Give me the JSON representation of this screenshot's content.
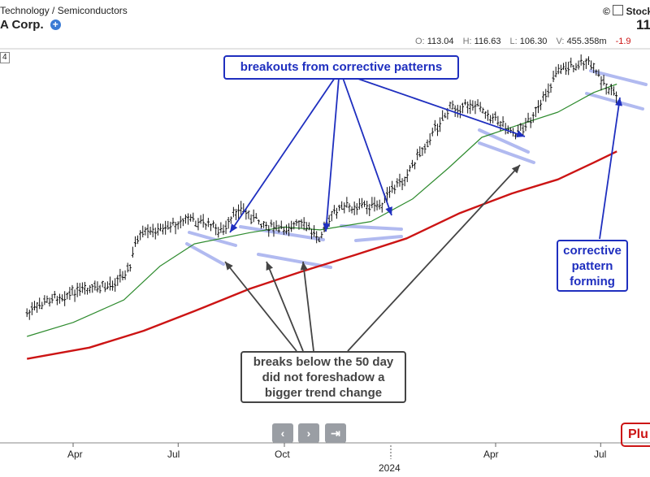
{
  "header": {
    "sector": "Technology / Semiconductors",
    "company": "A Corp.",
    "brand": "StockC",
    "price_partial": "11",
    "ohlc": {
      "open_label": "O:",
      "open": "113.04",
      "high_label": "H:",
      "high": "116.63",
      "low_label": "L:",
      "low": "106.30",
      "volume_label": "V:",
      "volume": "455.358m",
      "change_partial": "-1.9"
    },
    "corner_label": "4",
    "plus_badge": "Plu"
  },
  "annotations": {
    "breakouts": "breakouts from corrective patterns",
    "breaks": [
      "breaks below the 50 day",
      "did not foreshadow a",
      "bigger trend change"
    ],
    "corrective": [
      "corrective",
      "pattern",
      "forming"
    ]
  },
  "colors": {
    "price_bars": "#111111",
    "ma_50": "#2e8b2e",
    "ma_200": "#cc1414",
    "pattern_lines": "#a9b3ee",
    "breakout_arrows": "#1f2fbf",
    "break_arrows": "#444444",
    "callout_blue": "#1f2fbf",
    "callout_gray": "#444444",
    "badge_red": "#cc1414"
  },
  "nav": {
    "prev": "‹",
    "next": "›",
    "end": "⇥"
  },
  "chart_data": {
    "type": "line",
    "x_axis": {
      "tick_labels": [
        "Apr",
        "Jul",
        "Oct",
        "Apr",
        "Jul"
      ],
      "year_label": "2024"
    },
    "series": [
      {
        "style": "ohlc",
        "color": "#111111",
        "points": [
          [
            "2023-02-20",
            48
          ],
          [
            "2023-03-15",
            54
          ],
          [
            "2023-04-10",
            56
          ],
          [
            "2023-05-01",
            58
          ],
          [
            "2023-05-20",
            64
          ],
          [
            "2023-05-26",
            75
          ],
          [
            "2023-06-20",
            79
          ],
          [
            "2023-07-10",
            82
          ],
          [
            "2023-07-25",
            80
          ],
          [
            "2023-08-10",
            77
          ],
          [
            "2023-08-22",
            86
          ],
          [
            "2023-09-05",
            82
          ],
          [
            "2023-09-25",
            78
          ],
          [
            "2023-10-15",
            80
          ],
          [
            "2023-10-31",
            76
          ],
          [
            "2023-11-15",
            85
          ],
          [
            "2023-12-05",
            87
          ],
          [
            "2023-12-20",
            86
          ],
          [
            "2024-01-10",
            95
          ],
          [
            "2024-02-01",
            109
          ],
          [
            "2024-02-20",
            121
          ],
          [
            "2024-03-10",
            123
          ],
          [
            "2024-03-25",
            120
          ],
          [
            "2024-04-19",
            112
          ],
          [
            "2024-05-10",
            122
          ],
          [
            "2024-05-24",
            135
          ],
          [
            "2024-06-20",
            138
          ],
          [
            "2024-07-05",
            130
          ],
          [
            "2024-07-15",
            125
          ]
        ]
      },
      {
        "style": "line",
        "color": "#2e8b2e",
        "points": [
          [
            "2023-02-20",
            40
          ],
          [
            "2023-04-01",
            45
          ],
          [
            "2023-05-15",
            53
          ],
          [
            "2023-06-15",
            65
          ],
          [
            "2023-07-15",
            73
          ],
          [
            "2023-09-01",
            77
          ],
          [
            "2023-10-01",
            79
          ],
          [
            "2023-11-01",
            78
          ],
          [
            "2023-12-15",
            81
          ],
          [
            "2024-01-20",
            89
          ],
          [
            "2024-02-20",
            100
          ],
          [
            "2024-03-20",
            111
          ],
          [
            "2024-04-25",
            116
          ],
          [
            "2024-05-25",
            120
          ],
          [
            "2024-06-25",
            127
          ],
          [
            "2024-07-15",
            130
          ]
        ]
      },
      {
        "style": "line",
        "color": "#cc1414",
        "points": [
          [
            "2023-02-20",
            32
          ],
          [
            "2023-04-15",
            36
          ],
          [
            "2023-06-01",
            42
          ],
          [
            "2023-07-15",
            49
          ],
          [
            "2023-09-01",
            57
          ],
          [
            "2023-10-15",
            63
          ],
          [
            "2023-12-01",
            69
          ],
          [
            "2024-01-15",
            75
          ],
          [
            "2024-03-01",
            84
          ],
          [
            "2024-04-15",
            91
          ],
          [
            "2024-05-25",
            96
          ],
          [
            "2024-06-25",
            102
          ],
          [
            "2024-07-15",
            106
          ]
        ]
      }
    ]
  }
}
